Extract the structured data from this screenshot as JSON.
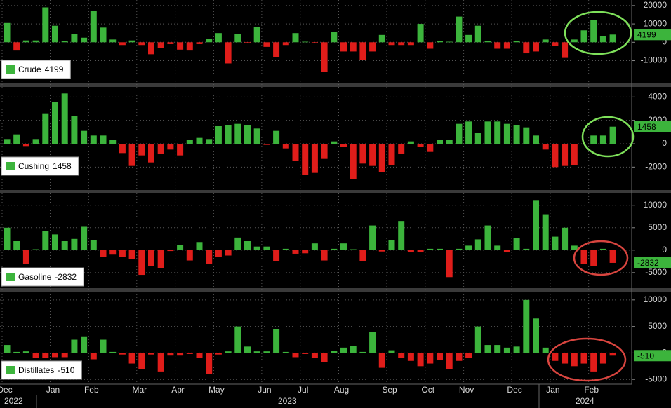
{
  "chart_data": [
    {
      "type": "bar",
      "name": "Crude",
      "color_up": "#3cb43c",
      "color_down": "#e01d1a",
      "ylim": [
        -22000,
        23000
      ],
      "yticks": [
        -10000,
        0,
        10000,
        20000
      ],
      "values": [
        10500,
        -4500,
        1000,
        1000,
        19000,
        9000,
        500,
        4500,
        2500,
        17000,
        8000,
        1500,
        -1500,
        1000,
        -1500,
        -6500,
        -3000,
        -1000,
        -4000,
        -4500,
        -1000,
        2000,
        5000,
        -11500,
        4500,
        -500,
        8500,
        -2500,
        -8000,
        -1500,
        5000,
        300,
        -500,
        -16000,
        5500,
        -5000,
        -5000,
        -9500,
        -5000,
        4000,
        -1500,
        -1500,
        -1500,
        10000,
        -3500,
        500,
        300,
        14000,
        4000,
        9000,
        500,
        -3500,
        -3500,
        500,
        -6000,
        -5000,
        1500,
        -2000,
        -8500,
        1500,
        6500,
        12000,
        3500,
        4199
      ]
    },
    {
      "type": "bar",
      "name": "Cushing",
      "color_up": "#3cb43c",
      "color_down": "#e01d1a",
      "ylim": [
        -3900,
        4800
      ],
      "yticks": [
        -2000,
        0,
        2000,
        4000
      ],
      "values": [
        400,
        800,
        -200,
        400,
        2600,
        3600,
        4300,
        2400,
        1100,
        700,
        700,
        300,
        -800,
        -1900,
        -1000,
        -1600,
        -900,
        -500,
        -1000,
        300,
        500,
        400,
        1500,
        1600,
        1700,
        1600,
        1300,
        -100,
        1100,
        -400,
        -1500,
        -2700,
        -2500,
        -1300,
        200,
        -300,
        -3000,
        -1700,
        -1900,
        -2400,
        -1800,
        -900,
        200,
        -300,
        -700,
        300,
        300,
        1700,
        1900,
        900,
        1900,
        1900,
        1700,
        1600,
        1400,
        700,
        -500,
        -2000,
        -1900,
        -1800,
        0,
        700,
        700,
        1458
      ]
    },
    {
      "type": "bar",
      "name": "Gasoline",
      "color_up": "#3cb43c",
      "color_down": "#e01d1a",
      "ylim": [
        -8300,
        12300
      ],
      "yticks": [
        -5000,
        0,
        5000,
        10000
      ],
      "values": [
        5000,
        2000,
        -3000,
        200,
        4200,
        3500,
        2000,
        2500,
        5200,
        2200,
        -1500,
        -1000,
        -1500,
        -2000,
        -5500,
        -3500,
        -4000,
        -200,
        1200,
        -2300,
        1800,
        -3000,
        -1500,
        -1200,
        2800,
        2000,
        800,
        800,
        -2500,
        300,
        -800,
        -700,
        1500,
        -2300,
        300,
        1500,
        200,
        -2500,
        5500,
        -300,
        2200,
        6500,
        -500,
        -500,
        300,
        300,
        -6000,
        300,
        1000,
        2400,
        5500,
        1000,
        -500,
        2700,
        300,
        11000,
        8000,
        3000,
        5000,
        1000,
        -3000,
        -3500,
        300,
        -2832
      ]
    },
    {
      "type": "bar",
      "name": "Distillates",
      "color_up": "#3cb43c",
      "color_down": "#e01d1a",
      "ylim": [
        -5500,
        11300
      ],
      "yticks": [
        -5000,
        0,
        5000,
        10000
      ],
      "values": [
        1500,
        200,
        300,
        -1000,
        -1000,
        -800,
        -800,
        2500,
        3000,
        -1200,
        2500,
        200,
        -300,
        -2000,
        -3000,
        -300,
        -3500,
        -500,
        -500,
        -200,
        -1000,
        -4000,
        -300,
        300,
        5000,
        1200,
        300,
        300,
        4500,
        200,
        -800,
        -200,
        -1000,
        -1700,
        400,
        1000,
        1300,
        200,
        4000,
        -2800,
        500,
        -1000,
        -1500,
        -2500,
        -2000,
        -1400,
        -3000,
        -1500,
        -1000,
        5000,
        1500,
        1500,
        1000,
        1200,
        10000,
        6500,
        1000,
        -1500,
        -2000,
        -2500,
        -2000,
        -3500,
        -2000,
        -510
      ],
      "categories": [
        "Dec",
        null,
        null,
        null,
        null,
        "Jan",
        null,
        null,
        null,
        "Feb",
        null,
        null,
        null,
        null,
        "Mar",
        null,
        null,
        null,
        "Apr",
        null,
        null,
        null,
        "May",
        null,
        null,
        null,
        null,
        "Jun",
        null,
        null,
        null,
        "Jul",
        null,
        null,
        null,
        "Aug",
        null,
        null,
        null,
        null,
        "Sep",
        null,
        null,
        null,
        "Oct",
        null,
        null,
        null,
        "Nov",
        null,
        null,
        null,
        null,
        "Dec",
        null,
        null,
        null,
        "Jan",
        null,
        null,
        null,
        "Feb",
        null,
        null
      ],
      "years": [
        "2022",
        "2023",
        "2024"
      ]
    }
  ]
}
